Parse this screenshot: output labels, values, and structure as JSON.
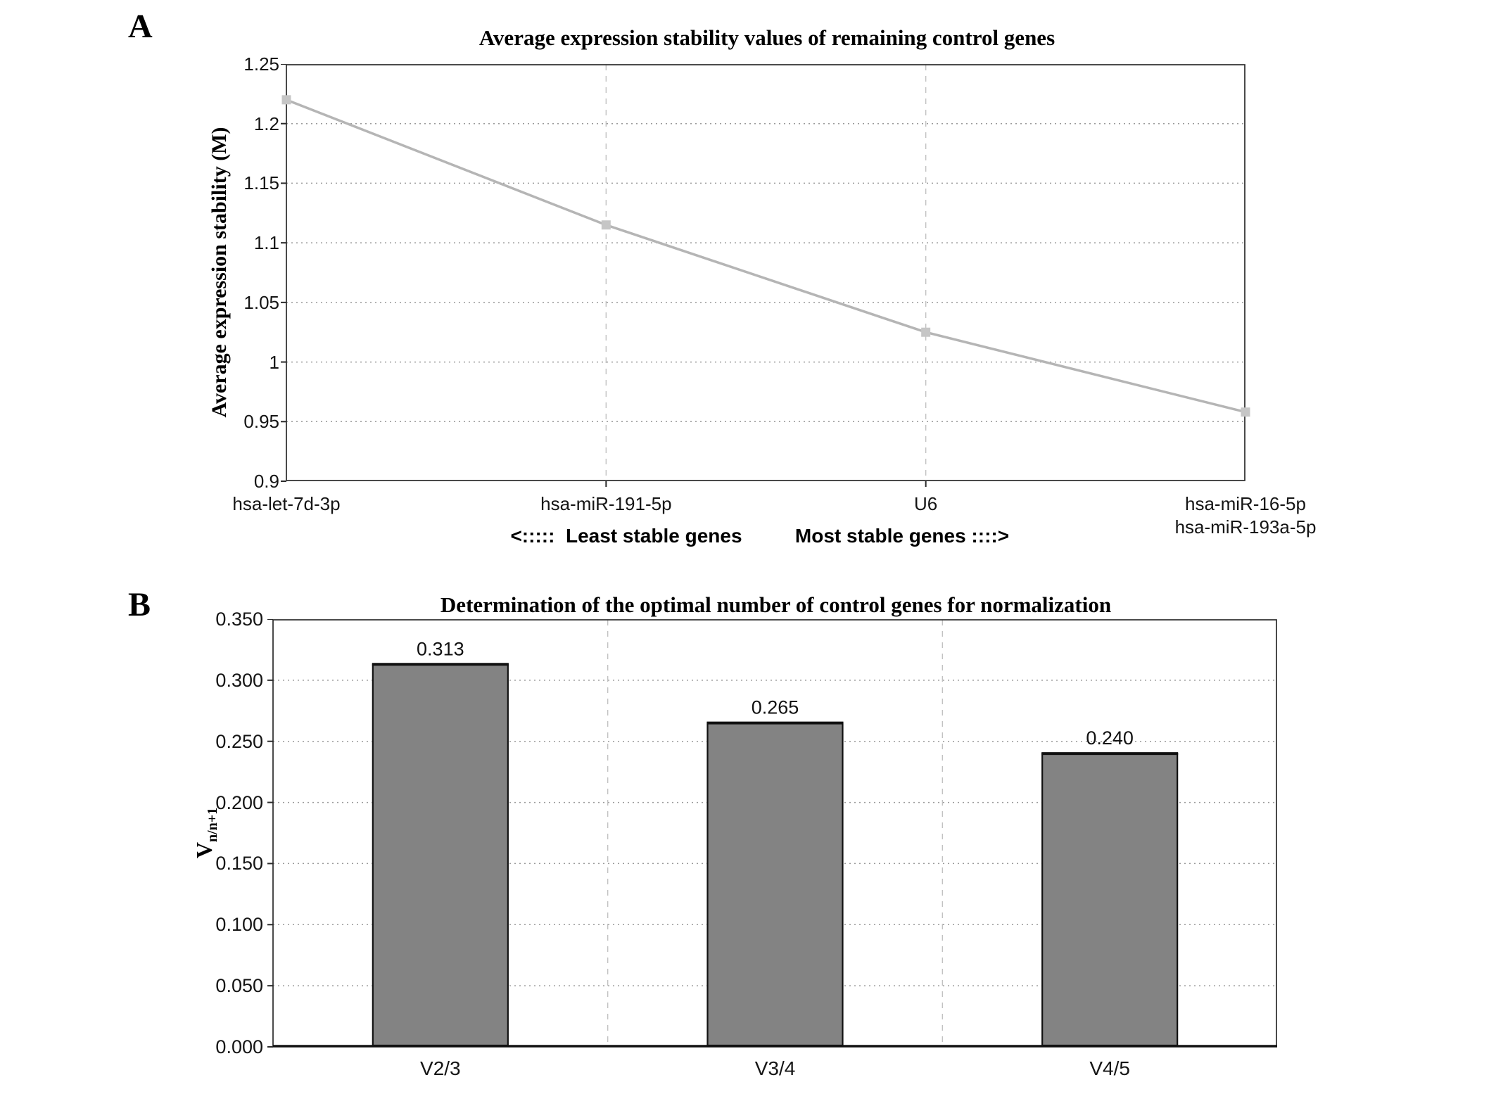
{
  "panel_a": {
    "label": "A",
    "title": "Average expression stability values of remaining control genes",
    "y_axis_label": "Average expression stability (M)",
    "annotations": {
      "least": "<:::::  Least stable genes",
      "most": "Most stable genes ::::>"
    }
  },
  "panel_b": {
    "label": "B",
    "title": "Determination of the optimal number of control genes for normalization",
    "y_axis_label_main": "V",
    "y_axis_label_sub": "n/n+1"
  },
  "chart_data": [
    {
      "id": "panel_a",
      "type": "line",
      "title": "Average expression stability values of remaining control genes",
      "xlabel": "",
      "ylabel": "Average expression stability (M)",
      "categories": [
        "hsa-let-7d-3p",
        "hsa-miR-191-5p",
        "U6",
        "hsa-miR-16-5p\nhsa-miR-193a-5p"
      ],
      "values": [
        1.22,
        1.115,
        1.025,
        0.958
      ],
      "ylim": [
        0.9,
        1.25
      ],
      "yticks": [
        "1.25",
        "1.2",
        "1.15",
        "1.1",
        "1.05",
        "1",
        "0.95",
        "0.9"
      ],
      "grid": true,
      "legend_position": "none",
      "annotations": [
        "<:::::  Least stable genes",
        "Most stable genes ::::>"
      ],
      "line_color": "#b5b5b5",
      "marker_color": "#c6c6c6",
      "marker_shape": "square"
    },
    {
      "id": "panel_b",
      "type": "bar",
      "title": "Determination of the optimal number of control genes for normalization",
      "xlabel": "",
      "ylabel": "Vn/n+1",
      "categories": [
        "V2/3",
        "V3/4",
        "V4/5"
      ],
      "values": [
        0.313,
        0.265,
        0.24
      ],
      "value_labels": [
        "0.313",
        "0.265",
        "0.240"
      ],
      "ylim": [
        0,
        0.35
      ],
      "yticks": [
        "0.350",
        "0.300",
        "0.250",
        "0.200",
        "0.150",
        "0.100",
        "0.050",
        "0.000"
      ],
      "grid": true,
      "legend_position": "none",
      "bar_color": "#838383",
      "bar_border_color": "#111111"
    }
  ]
}
